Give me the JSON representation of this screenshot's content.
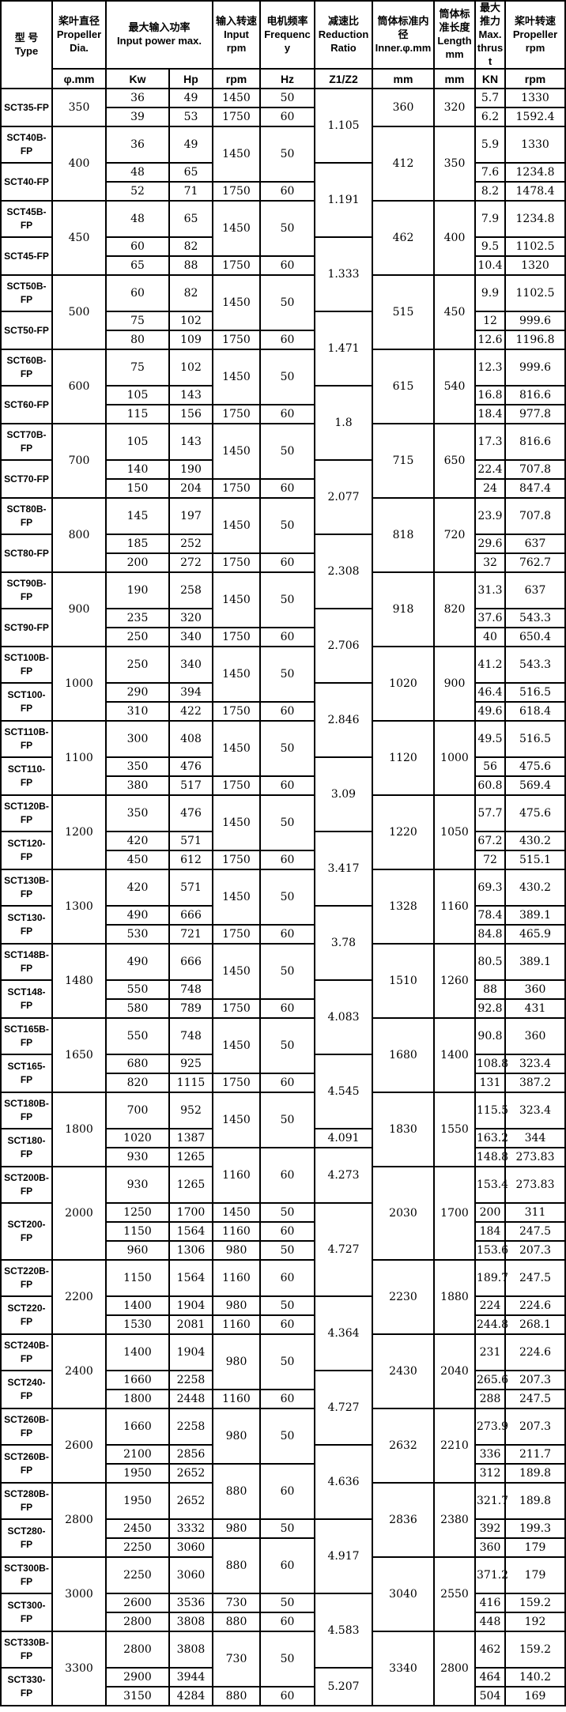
{
  "table": {
    "header": {
      "type": {
        "cn": "型 号",
        "en": "Type"
      },
      "dia": {
        "cn": "桨叶直径",
        "en": "Propeller Dia.",
        "sub": "φ.mm"
      },
      "power": {
        "cn": "最大输入功率",
        "en": "Input power max.",
        "sub_kw": "Kw",
        "sub_hp": "Hp"
      },
      "rpm": {
        "cn": "输入转速",
        "en": "Input rpm",
        "sub": "rpm"
      },
      "freq": {
        "cn": "电机频率",
        "en": "Frequency",
        "sub": "Hz"
      },
      "ratio": {
        "cn": "减速比",
        "en": "Reduction Ratio",
        "sub": "Z1/Z2"
      },
      "inner": {
        "cn": "筒体标准内径",
        "en": "Inner.φ.mm",
        "sub": "mm"
      },
      "length": {
        "cn": "筒体标准长度",
        "en": "Length mm",
        "sub": "mm"
      },
      "thrust": {
        "cn": "最大推力",
        "en": "Max. thrust",
        "sub": "KN"
      },
      "prpm": {
        "cn": "桨叶转速",
        "en": "Propeller rpm",
        "sub": "rpm"
      }
    },
    "columns_order": [
      "type",
      "dia",
      "kw",
      "hp",
      "input_rpm",
      "hz",
      "ratio",
      "inner_mm",
      "length_mm",
      "thrust_kn",
      "propeller_rpm"
    ],
    "border_color": "#000000",
    "background_color": "#ffffff",
    "tall_rows": [
      2,
      5,
      8,
      11,
      14,
      17,
      20,
      23,
      26,
      29,
      32,
      35,
      38,
      41,
      44,
      48,
      51,
      54,
      57,
      60,
      63
    ],
    "rows": [
      [
        "SCT35-FP|2",
        "350|2",
        "36",
        "49",
        "1450",
        "50",
        "1.105|3",
        "360|2",
        "320|2",
        "5.7",
        "1330"
      ],
      [
        "39",
        "53",
        "1750",
        "60",
        "6.2",
        "1592.4"
      ],
      [
        "SCT40B-FP",
        "400|3",
        "36",
        "49",
        "1450|2",
        "50|2",
        "412|3",
        "350|3",
        "5.9",
        "1330"
      ],
      [
        "SCT40-FP|2",
        "48",
        "65",
        "1.191|3",
        "7.6",
        "1234.8"
      ],
      [
        "52",
        "71",
        "1750",
        "60",
        "8.2",
        "1478.4"
      ],
      [
        "SCT45B-FP",
        "450|3",
        "48",
        "65",
        "1450|2",
        "50|2",
        "462|3",
        "400|3",
        "7.9",
        "1234.8"
      ],
      [
        "SCT45-FP|2",
        "60",
        "82",
        "1.333|3",
        "9.5",
        "1102.5"
      ],
      [
        "65",
        "88",
        "1750",
        "60",
        "10.4",
        "1320"
      ],
      [
        "SCT50B-FP",
        "500|3",
        "60",
        "82",
        "1450|2",
        "50|2",
        "515|3",
        "450|3",
        "9.9",
        "1102.5"
      ],
      [
        "SCT50-FP|2",
        "75",
        "102",
        "1.471|3",
        "12",
        "999.6"
      ],
      [
        "80",
        "109",
        "1750",
        "60",
        "12.6",
        "1196.8"
      ],
      [
        "SCT60B-FP",
        "600|3",
        "75",
        "102",
        "1450|2",
        "50|2",
        "615|3",
        "540|3",
        "12.3",
        "999.6"
      ],
      [
        "SCT60-FP|2",
        "105",
        "143",
        "1.8|3",
        "16.8",
        "816.6"
      ],
      [
        "115",
        "156",
        "1750",
        "60",
        "18.4",
        "977.8"
      ],
      [
        "SCT70B-FP",
        "700|3",
        "105",
        "143",
        "1450|2",
        "50|2",
        "715|3",
        "650|3",
        "17.3",
        "816.6"
      ],
      [
        "SCT70-FP|2",
        "140",
        "190",
        "2.077|3",
        "22.4",
        "707.8"
      ],
      [
        "150",
        "204",
        "1750",
        "60",
        "24",
        "847.4"
      ],
      [
        "SCT80B-FP",
        "800|3",
        "145",
        "197",
        "1450|2",
        "50|2",
        "818|3",
        "720|3",
        "23.9",
        "707.8"
      ],
      [
        "SCT80-FP|2",
        "185",
        "252",
        "2.308|3",
        "29.6",
        "637"
      ],
      [
        "200",
        "272",
        "1750",
        "60",
        "32",
        "762.7"
      ],
      [
        "SCT90B-FP",
        "900|3",
        "190",
        "258",
        "1450|2",
        "50|2",
        "918|3",
        "820|3",
        "31.3",
        "637"
      ],
      [
        "SCT90-FP|2",
        "235",
        "320",
        "2.706|3",
        "37.6",
        "543.3"
      ],
      [
        "250",
        "340",
        "1750",
        "60",
        "40",
        "650.4"
      ],
      [
        "SCT100B-FP",
        "1000|3",
        "250",
        "340",
        "1450|2",
        "50|2",
        "1020|3",
        "900|3",
        "41.2",
        "543.3"
      ],
      [
        "SCT100-FP|2",
        "290",
        "394",
        "2.846|3",
        "46.4",
        "516.5"
      ],
      [
        "310",
        "422",
        "1750",
        "60",
        "49.6",
        "618.4"
      ],
      [
        "SCT110B-FP",
        "1100|3",
        "300",
        "408",
        "1450|2",
        "50|2",
        "1120|3",
        "1000|3",
        "49.5",
        "516.5"
      ],
      [
        "SCT110-FP|2",
        "350",
        "476",
        "3.09|3",
        "56",
        "475.6"
      ],
      [
        "380",
        "517",
        "1750",
        "60",
        "60.8",
        "569.4"
      ],
      [
        "SCT120B-FP",
        "1200|3",
        "350",
        "476",
        "1450|2",
        "50|2",
        "1220|3",
        "1050|3",
        "57.7",
        "475.6"
      ],
      [
        "SCT120-FP|2",
        "420",
        "571",
        "3.417|3",
        "67.2",
        "430.2"
      ],
      [
        "450",
        "612",
        "1750",
        "60",
        "72",
        "515.1"
      ],
      [
        "SCT130B-FP",
        "1300|3",
        "420",
        "571",
        "1450|2",
        "50|2",
        "1328|3",
        "1160|3",
        "69.3",
        "430.2"
      ],
      [
        "SCT130-FP|2",
        "490",
        "666",
        "3.78|3",
        "78.4",
        "389.1"
      ],
      [
        "530",
        "721",
        "1750",
        "60",
        "84.8",
        "465.9"
      ],
      [
        "SCT148B-FP",
        "1480|3",
        "490",
        "666",
        "1450|2",
        "50|2",
        "1510|3",
        "1260|3",
        "80.5",
        "389.1"
      ],
      [
        "SCT148-FP|2",
        "550",
        "748",
        "4.083|3",
        "88",
        "360"
      ],
      [
        "580",
        "789",
        "1750",
        "60",
        "92.8",
        "431"
      ],
      [
        "SCT165B-FP",
        "1650|3",
        "550",
        "748",
        "1450|2",
        "50|2",
        "1680|3",
        "1400|3",
        "90.8",
        "360"
      ],
      [
        "SCT165-FP|2",
        "680",
        "925",
        "4.545|3",
        "108.8",
        "323.4"
      ],
      [
        "820",
        "1115",
        "1750",
        "60",
        "131",
        "387.2"
      ],
      [
        "SCT180B-FP",
        "1800|3",
        "700",
        "952",
        "1450|2",
        "50|2",
        "1830|3",
        "1550|3",
        "115.5",
        "323.4"
      ],
      [
        "SCT180-FP|2",
        "1020",
        "1387",
        "4.091",
        "163.2",
        "344"
      ],
      [
        "930",
        "1265",
        "1160|2",
        "60|2",
        "4.273|2",
        "148.8",
        "273.83"
      ],
      [
        "SCT200B-FP",
        "2000|4",
        "930",
        "1265",
        "2030|4",
        "1700|4",
        "153.4",
        "273.83"
      ],
      [
        "SCT200-FP|3",
        "1250",
        "1700",
        "1450",
        "50",
        "4.727|4",
        "200",
        "311"
      ],
      [
        "1150",
        "1564",
        "1160",
        "60",
        "184",
        "247.5"
      ],
      [
        "960",
        "1306",
        "980",
        "50",
        "153.6",
        "207.3"
      ],
      [
        "SCT220B-FP",
        "2200|3",
        "1150",
        "1564",
        "1160",
        "60",
        "2230|3",
        "1880|3",
        "189.7",
        "247.5"
      ],
      [
        "SCT220-FP|2",
        "1400",
        "1904",
        "980",
        "50",
        "4.364|3",
        "224",
        "224.6"
      ],
      [
        "1530",
        "2081",
        "1160",
        "60",
        "244.8",
        "268.1"
      ],
      [
        "SCT240B-FP",
        "2400|3",
        "1400",
        "1904",
        "980|2",
        "50|2",
        "2430|3",
        "2040|3",
        "231",
        "224.6"
      ],
      [
        "SCT240-FP|2",
        "1660",
        "2258",
        "4.727|3",
        "265.6",
        "207.3"
      ],
      [
        "1800",
        "2448",
        "1160",
        "60",
        "288",
        "247.5"
      ],
      [
        "SCT260B-FP",
        "2600|3",
        "1660",
        "2258",
        "980|2",
        "50|2",
        "2632|3",
        "2210|3",
        "273.9",
        "207.3"
      ],
      [
        "SCT260B-FP|2",
        "2100",
        "2856",
        "4.636|3",
        "336",
        "211.7"
      ],
      [
        "1950",
        "2652",
        "880|2",
        "60|2",
        "312",
        "189.8"
      ],
      [
        "SCT280B-FP",
        "2800|3",
        "1950",
        "2652",
        "2836|3",
        "2380|3",
        "321.7",
        "189.8"
      ],
      [
        "SCT280-FP|2",
        "2450",
        "3332",
        "980",
        "50",
        "4.917|3",
        "392",
        "199.3"
      ],
      [
        "2250",
        "3060",
        "880|2",
        "60|2",
        "360",
        "179"
      ],
      [
        "SCT300B-FP",
        "3000|3",
        "2250",
        "3060",
        "3040|3",
        "2550|3",
        "371.2",
        "179"
      ],
      [
        "SCT300-FP|2",
        "2600",
        "3536",
        "730",
        "50",
        "4.583|3",
        "416",
        "159.2"
      ],
      [
        "2800",
        "3808",
        "880",
        "60",
        "448",
        "192"
      ],
      [
        "SCT330B-FP",
        "3300|3",
        "2800",
        "3808",
        "730|2",
        "50|2",
        "3340|3",
        "2800|3",
        "462",
        "159.2"
      ],
      [
        "SCT330-FP|2",
        "2900",
        "3944",
        "5.207|2",
        "464",
        "140.2"
      ],
      [
        "3150",
        "4284",
        "880",
        "60",
        "504",
        "169"
      ]
    ]
  }
}
